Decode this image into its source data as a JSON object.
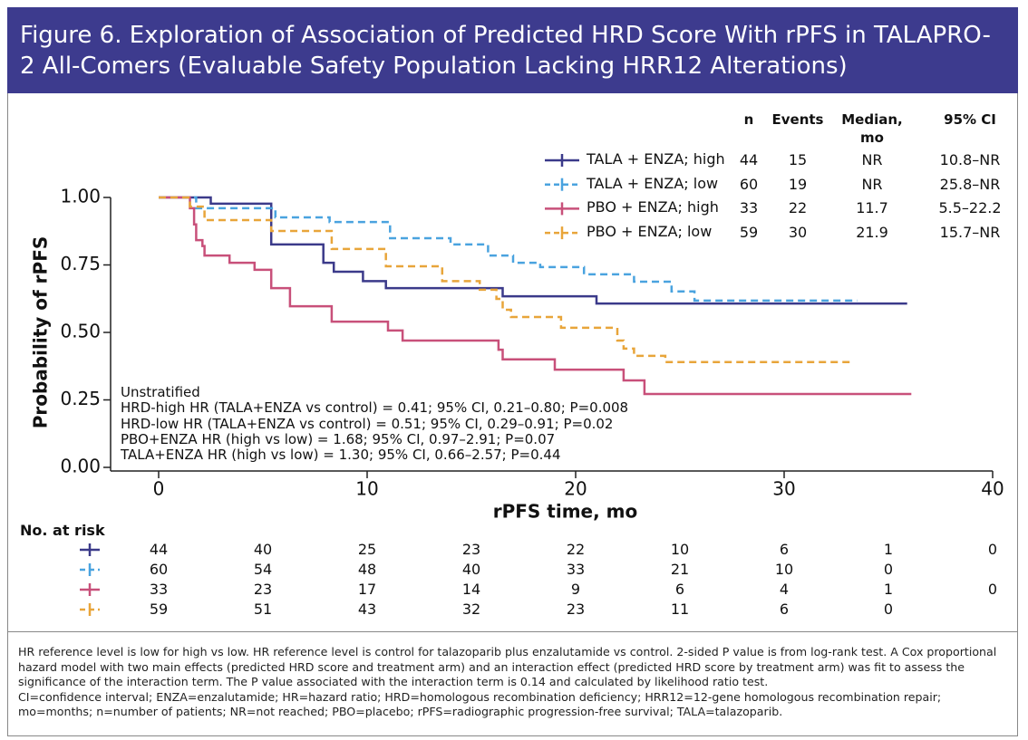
{
  "chart_data": {
    "type": "step",
    "title": "Figure 6. Exploration of Association of Predicted HRD Score With rPFS in TALAPRO-2 All-Comers (Evaluable Safety Population Lacking HRR12 Alterations)",
    "x_label": "rPFS time, mo",
    "y_label": "Probability of rPFS",
    "xlim": [
      0,
      40
    ],
    "xticks": [
      0,
      10,
      20,
      30,
      40
    ],
    "ylim": [
      0,
      1
    ],
    "yticks": [
      {
        "value": 0,
        "label": "0.00"
      },
      {
        "value": 0.25,
        "label": "0.25"
      },
      {
        "value": 0.5,
        "label": "0.50"
      },
      {
        "value": 0.75,
        "label": "0.75"
      },
      {
        "value": 1,
        "label": "1.00"
      }
    ],
    "table_headers": [
      "n",
      "Events",
      "Median, mo",
      "95% CI"
    ],
    "series": [
      {
        "name": "TALA + ENZA; high",
        "color": "#3b3a8a",
        "line_style": "solid",
        "n": 44,
        "events": 15,
        "median": "NR",
        "ci": "10.8–NR",
        "x": [
          0,
          2.5,
          5.4,
          7.9,
          8.4,
          9.8,
          10.9,
          16.5,
          21.0,
          35.9
        ],
        "values": [
          1.0,
          0.977,
          0.826,
          0.758,
          0.725,
          0.69,
          0.664,
          0.634,
          0.607,
          0.607
        ],
        "at_risk": [
          44,
          40,
          25,
          23,
          22,
          10,
          6,
          1,
          0
        ]
      },
      {
        "name": "TALA + ENZA; low",
        "color": "#4aa3df",
        "line_style": "dashed",
        "n": 60,
        "events": 19,
        "median": "NR",
        "ci": "25.8–NR",
        "x": [
          0,
          1.8,
          5.6,
          8.2,
          11.1,
          14.0,
          15.8,
          17.0,
          18.3,
          20.4,
          22.8,
          24.6,
          25.7,
          33.5
        ],
        "values": [
          1.0,
          0.96,
          0.926,
          0.909,
          0.849,
          0.826,
          0.785,
          0.758,
          0.742,
          0.715,
          0.688,
          0.652,
          0.618,
          0.618
        ],
        "at_risk": [
          60,
          54,
          48,
          40,
          33,
          21,
          10,
          0,
          null
        ]
      },
      {
        "name": "PBO + ENZA; high",
        "color": "#c8507a",
        "line_style": "solid",
        "n": 33,
        "events": 22,
        "median": 11.7,
        "ci": "5.5–22.2",
        "x": [
          0,
          1.5,
          1.7,
          1.8,
          2.1,
          2.2,
          3.4,
          4.6,
          5.4,
          6.3,
          8.3,
          11.0,
          11.7,
          16.3,
          16.5,
          19.0,
          22.3,
          23.3,
          36.1
        ],
        "values": [
          1.0,
          0.96,
          0.9,
          0.842,
          0.82,
          0.785,
          0.758,
          0.732,
          0.664,
          0.597,
          0.54,
          0.507,
          0.47,
          0.436,
          0.4,
          0.362,
          0.322,
          0.272,
          0.272
        ],
        "at_risk": [
          33,
          23,
          17,
          14,
          9,
          6,
          4,
          1,
          0
        ]
      },
      {
        "name": "PBO + ENZA; low",
        "color": "#e8a53a",
        "line_style": "dashed",
        "n": 59,
        "events": 30,
        "median": 21.9,
        "ci": "15.7–NR",
        "x": [
          0,
          1.5,
          2.2,
          5.4,
          8.3,
          10.9,
          13.6,
          15.4,
          16.2,
          16.5,
          16.9,
          19.3,
          22.0,
          22.3,
          22.8,
          24.3,
          33.3
        ],
        "values": [
          1.0,
          0.966,
          0.916,
          0.876,
          0.809,
          0.745,
          0.69,
          0.658,
          0.624,
          0.584,
          0.557,
          0.517,
          0.47,
          0.44,
          0.413,
          0.39,
          0.39
        ],
        "at_risk": [
          59,
          51,
          43,
          32,
          23,
          11,
          6,
          0,
          null
        ]
      }
    ],
    "annotation": [
      "Unstratified",
      "HRD-high HR (TALA+ENZA vs control) = 0.41; 95% CI, 0.21–0.80; P=0.008",
      "HRD-low HR (TALA+ENZA vs control) = 0.51; 95% CI, 0.29–0.91; P=0.02",
      "PBO+ENZA HR (high vs low) = 1.68; 95% CI, 0.97–2.91; P=0.07",
      "TALA+ENZA HR (high vs low) = 1.30; 95% CI, 0.66–2.57; P=0.44"
    ],
    "risk_title": "No. at risk",
    "footnotes": [
      "HR reference level is low for high vs low. HR reference level is control for talazoparib plus enzalutamide vs control. 2-sided P value is from log-rank test. A Cox proportional hazard model with two main effects (predicted HRD score and treatment arm) and an interaction effect (predicted HRD score by treatment arm) was fit to assess the significance of the interaction term. The P value associated with the interaction term is 0.14 and calculated by likelihood ratio test.",
      "CI=confidence interval; ENZA=enzalutamide; HR=hazard ratio; HRD=homologous recombination deficiency; HRR12=12-gene homologous recombination repair; mo=months; n=number of patients; NR=not reached; PBO=placebo; rPFS=radiographic progression-free survival; TALA=talazoparib."
    ]
  }
}
